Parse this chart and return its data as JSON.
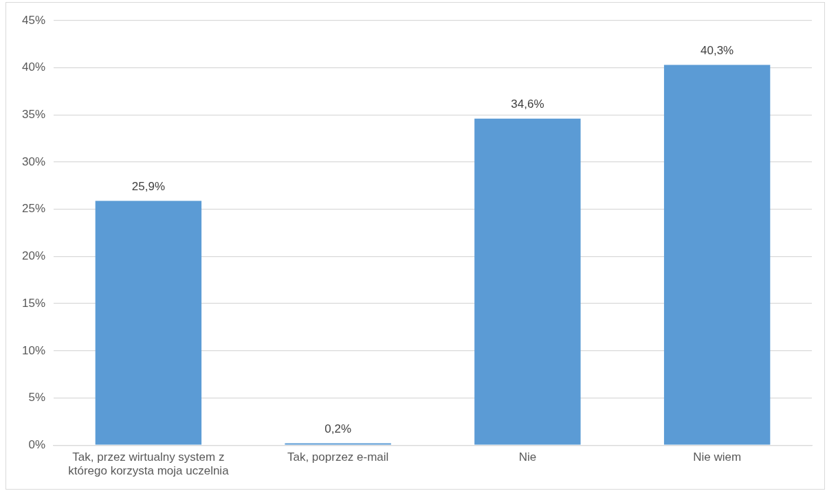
{
  "chart_data": {
    "type": "bar",
    "categories": [
      "Tak, przez wirtualny system z którego korzysta moja uczelnia",
      "Tak, poprzez e-mail",
      "Nie",
      "Nie wiem"
    ],
    "values": [
      25.9,
      0.2,
      34.6,
      40.3
    ],
    "value_labels": [
      "25,9%",
      "0,2%",
      "34,6%",
      "40,3%"
    ],
    "color": "#5b9bd5",
    "ylim": [
      0,
      45
    ],
    "yticks": [
      {
        "value": 0,
        "label": "0%"
      },
      {
        "value": 5,
        "label": "5%"
      },
      {
        "value": 10,
        "label": "10%"
      },
      {
        "value": 15,
        "label": "15%"
      },
      {
        "value": 20,
        "label": "20%"
      },
      {
        "value": 25,
        "label": "25%"
      },
      {
        "value": 30,
        "label": "30%"
      },
      {
        "value": 35,
        "label": "35%"
      },
      {
        "value": 40,
        "label": "40%"
      },
      {
        "value": 45,
        "label": "45%"
      }
    ],
    "grid": "y",
    "legend": false
  }
}
